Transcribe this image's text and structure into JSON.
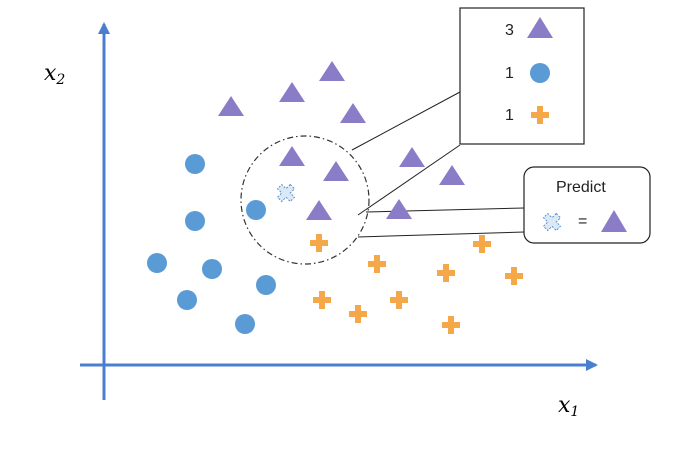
{
  "axes": {
    "x_label": "x",
    "x_sub": "1",
    "y_label": "x",
    "y_sub": "2",
    "color": "#4a7fd0"
  },
  "classes": {
    "triangle": {
      "name": "triangle",
      "color": "#8b7cc8"
    },
    "circle": {
      "name": "circle",
      "color": "#5b9bd5"
    },
    "cross": {
      "name": "plus",
      "color": "#f4a84a"
    }
  },
  "query_point": {
    "icon": "dashed-cross-icon",
    "color": "#9fc3e6"
  },
  "legend": {
    "items": [
      {
        "count": "3",
        "icon": "triangle-icon"
      },
      {
        "count": "1",
        "icon": "circle-icon"
      },
      {
        "count": "1",
        "icon": "plus-icon"
      }
    ]
  },
  "prediction": {
    "title": "Predict",
    "equals": "=",
    "result_icon": "triangle-icon"
  }
}
